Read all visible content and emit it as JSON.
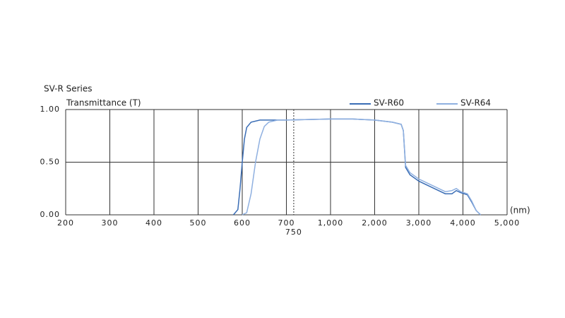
{
  "chart_data": {
    "type": "line",
    "title": "SV-R Series",
    "y_label": "Transmittance (T)",
    "x_label": "(nm)",
    "xlim": [
      200,
      5000
    ],
    "xticks": [
      200,
      300,
      400,
      500,
      600,
      700,
      {
        "value": 1000,
        "label": "1,000"
      },
      {
        "value": 2000,
        "label": "2,000"
      },
      {
        "value": 3000,
        "label": "3,000"
      },
      {
        "value": 4000,
        "label": "4,000"
      },
      {
        "value": 5000,
        "label": "5,000"
      }
    ],
    "reference_x": 750,
    "ylim": [
      0,
      1
    ],
    "yticks": [
      {
        "value": 0,
        "label": "0.00"
      },
      {
        "value": 0.5,
        "label": "0.50"
      },
      {
        "value": 1,
        "label": "1.00"
      }
    ],
    "grid": true,
    "legend": "top-right",
    "series": [
      {
        "name": "SV-R60",
        "color": "#3a6db5",
        "x": [
          580,
          590,
          595,
          600,
          605,
          610,
          620,
          640,
          700,
          1000,
          1500,
          2000,
          2400,
          2600,
          2650,
          2700,
          2800,
          3000,
          3300,
          3600,
          3750,
          3850,
          3950,
          4100,
          4200,
          4300,
          4400
        ],
        "values": [
          0,
          0.05,
          0.25,
          0.5,
          0.72,
          0.83,
          0.88,
          0.9,
          0.9,
          0.91,
          0.91,
          0.9,
          0.88,
          0.86,
          0.8,
          0.45,
          0.38,
          0.32,
          0.26,
          0.2,
          0.2,
          0.23,
          0.21,
          0.19,
          0.12,
          0.04,
          0
        ]
      },
      {
        "name": "SV-R64",
        "color": "#8fb0e0",
        "x": [
          600,
          610,
          620,
          630,
          640,
          650,
          660,
          680,
          700,
          1000,
          1500,
          2000,
          2400,
          2600,
          2650,
          2700,
          2800,
          3000,
          3300,
          3600,
          3750,
          3850,
          3950,
          4100,
          4200,
          4300,
          4400
        ],
        "values": [
          0,
          0.02,
          0.2,
          0.5,
          0.72,
          0.84,
          0.88,
          0.9,
          0.9,
          0.91,
          0.91,
          0.9,
          0.88,
          0.86,
          0.8,
          0.47,
          0.4,
          0.34,
          0.28,
          0.22,
          0.23,
          0.25,
          0.22,
          0.2,
          0.13,
          0.04,
          0
        ]
      }
    ]
  }
}
